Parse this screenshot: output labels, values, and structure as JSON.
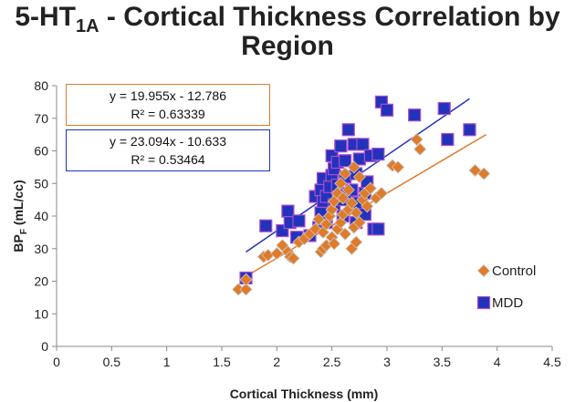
{
  "chart_data": {
    "type": "scatter",
    "title_prefix": "5-HT",
    "title_sub": "1A",
    "title_rest": " - Cortical Thickness Correlation by",
    "title_line2": "Region",
    "xlabel": "Cortical Thickness (mm)",
    "ylabel": "BP",
    "ylabel_sub": "F",
    "ylabel_rest": " (mL/cc)",
    "xlim": [
      0,
      4.5
    ],
    "ylim": [
      0,
      80
    ],
    "xticks": [
      "0",
      "0.5",
      "1",
      "1.5",
      "2",
      "2.5",
      "3",
      "3.5",
      "4",
      "4.5"
    ],
    "yticks": [
      "0",
      "10",
      "20",
      "30",
      "40",
      "50",
      "60",
      "70",
      "80"
    ],
    "grid": false,
    "legend_placement": "right",
    "series": [
      {
        "name": "Control",
        "marker": "diamond",
        "color": "#e07b2a",
        "equation": "y = 19.955x - 12.786",
        "r2": "R² = 0.63339",
        "trend": [
          [
            1.72,
            21.5
          ],
          [
            3.9,
            65.0
          ]
        ],
        "points": [
          [
            1.65,
            17.5
          ],
          [
            1.72,
            17.5
          ],
          [
            1.72,
            20.5
          ],
          [
            1.88,
            27.5
          ],
          [
            1.92,
            28.0
          ],
          [
            2.0,
            28.5
          ],
          [
            2.05,
            31.0
          ],
          [
            2.1,
            29.0
          ],
          [
            2.12,
            27.5
          ],
          [
            2.15,
            27.0
          ],
          [
            2.2,
            32.0
          ],
          [
            2.25,
            33.0
          ],
          [
            2.3,
            34.5
          ],
          [
            2.35,
            36.0
          ],
          [
            2.38,
            39.0
          ],
          [
            2.4,
            29.0
          ],
          [
            2.42,
            30.0
          ],
          [
            2.42,
            35.0
          ],
          [
            2.45,
            31.0
          ],
          [
            2.45,
            37.5
          ],
          [
            2.48,
            40.0
          ],
          [
            2.5,
            33.5
          ],
          [
            2.5,
            42.0
          ],
          [
            2.52,
            31.5
          ],
          [
            2.52,
            44.5
          ],
          [
            2.55,
            36.0
          ],
          [
            2.55,
            47.0
          ],
          [
            2.58,
            38.0
          ],
          [
            2.58,
            50.0
          ],
          [
            2.6,
            40.5
          ],
          [
            2.6,
            45.5
          ],
          [
            2.62,
            34.5
          ],
          [
            2.62,
            53.0
          ],
          [
            2.65,
            42.0
          ],
          [
            2.65,
            48.0
          ],
          [
            2.68,
            30.0
          ],
          [
            2.68,
            44.0
          ],
          [
            2.7,
            36.5
          ],
          [
            2.7,
            55.0
          ],
          [
            2.72,
            32.0
          ],
          [
            2.72,
            41.0
          ],
          [
            2.75,
            38.0
          ],
          [
            2.75,
            52.0
          ],
          [
            2.78,
            45.0
          ],
          [
            2.8,
            47.0
          ],
          [
            2.82,
            43.0
          ],
          [
            2.85,
            48.5
          ],
          [
            2.9,
            45.5
          ],
          [
            2.95,
            47.0
          ],
          [
            3.05,
            55.5
          ],
          [
            3.1,
            55.0
          ],
          [
            3.27,
            63.5
          ],
          [
            3.3,
            60.5
          ],
          [
            3.8,
            54.0
          ],
          [
            3.88,
            53.0
          ]
        ]
      },
      {
        "name": "MDD",
        "marker": "square",
        "color": "#2233bb",
        "equation": "y = 23.094x - 10.633",
        "r2": "R² = 0.53464",
        "trend": [
          [
            1.72,
            29.0
          ],
          [
            3.75,
            76.0
          ]
        ],
        "points": [
          [
            1.72,
            21.0
          ],
          [
            1.9,
            37.0
          ],
          [
            2.05,
            35.5
          ],
          [
            2.1,
            41.5
          ],
          [
            2.12,
            38.0
          ],
          [
            2.18,
            33.5
          ],
          [
            2.2,
            38.5
          ],
          [
            2.3,
            34.0
          ],
          [
            2.35,
            46.0
          ],
          [
            2.38,
            36.5
          ],
          [
            2.4,
            41.0
          ],
          [
            2.4,
            48.0
          ],
          [
            2.42,
            44.5
          ],
          [
            2.42,
            51.5
          ],
          [
            2.45,
            38.0
          ],
          [
            2.45,
            46.0
          ],
          [
            2.48,
            49.0
          ],
          [
            2.5,
            52.5
          ],
          [
            2.5,
            58.5
          ],
          [
            2.52,
            54.5
          ],
          [
            2.52,
            43.5
          ],
          [
            2.55,
            56.5
          ],
          [
            2.55,
            49.5
          ],
          [
            2.58,
            61.5
          ],
          [
            2.6,
            40.0
          ],
          [
            2.6,
            45.0
          ],
          [
            2.62,
            52.0
          ],
          [
            2.62,
            57.0
          ],
          [
            2.65,
            66.5
          ],
          [
            2.65,
            47.0
          ],
          [
            2.68,
            48.0
          ],
          [
            2.7,
            62.0
          ],
          [
            2.72,
            38.0
          ],
          [
            2.72,
            53.0
          ],
          [
            2.75,
            44.0
          ],
          [
            2.75,
            57.5
          ],
          [
            2.78,
            62.0
          ],
          [
            2.8,
            40.5
          ],
          [
            2.8,
            47.0
          ],
          [
            2.82,
            50.5
          ],
          [
            2.85,
            58.5
          ],
          [
            2.88,
            36.0
          ],
          [
            2.92,
            36.0
          ],
          [
            2.92,
            59.0
          ],
          [
            2.95,
            75.0
          ],
          [
            3.0,
            72.5
          ],
          [
            3.25,
            71.0
          ],
          [
            3.52,
            73.0
          ],
          [
            3.55,
            63.5
          ],
          [
            3.75,
            66.5
          ]
        ]
      }
    ]
  }
}
